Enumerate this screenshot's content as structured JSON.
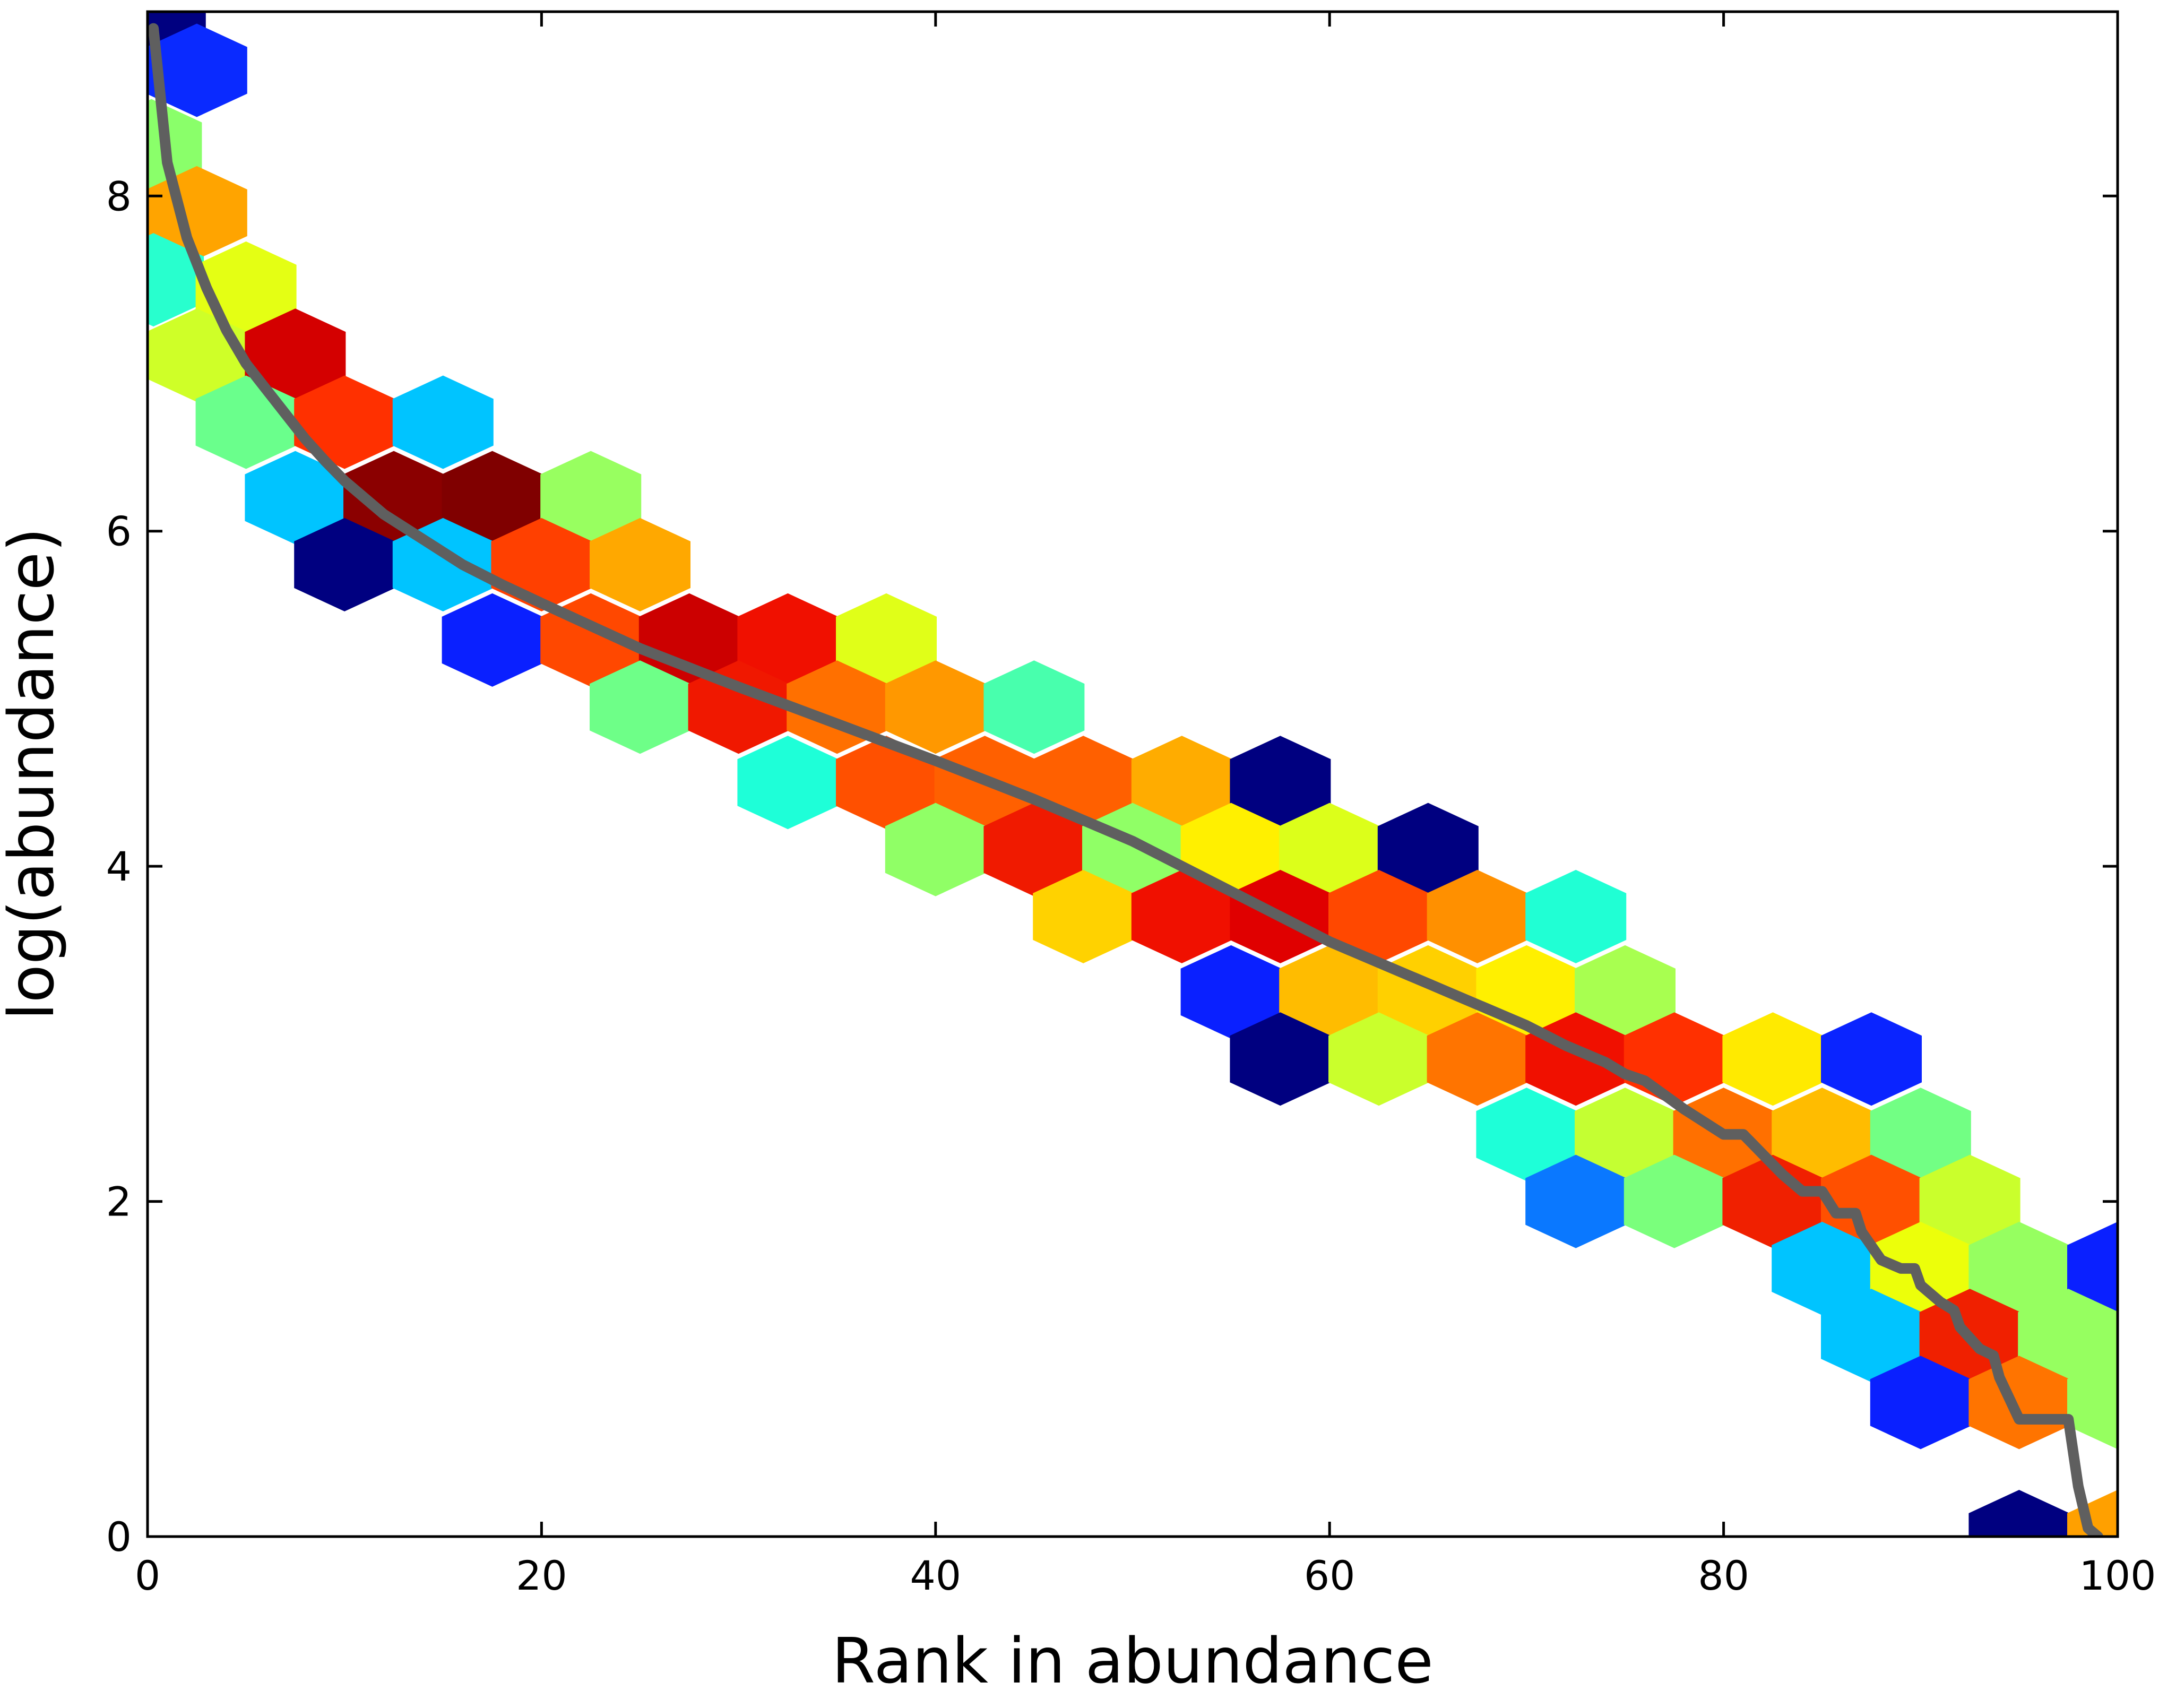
{
  "chart_data": {
    "type": "hexbin",
    "title": "",
    "xlabel": "Rank in abundance",
    "ylabel": "log(abundance)",
    "xlim": [
      0,
      100
    ],
    "ylim": [
      0,
      9.1
    ],
    "xticks": [
      "0",
      "20",
      "40",
      "60",
      "80",
      "100"
    ],
    "yticks": [
      "0",
      "2",
      "4",
      "6",
      "8"
    ],
    "grid": false,
    "legend": "none",
    "colormap": "jet",
    "hex_cells": [
      {
        "x": 0.4,
        "y": 9.05,
        "color": "#000080"
      },
      {
        "x": 2.5,
        "y": 8.75,
        "color": "#0a2aff"
      },
      {
        "x": 0.2,
        "y": 8.3,
        "color": "#8aff6a"
      },
      {
        "x": 2.5,
        "y": 7.9,
        "color": "#ffa400"
      },
      {
        "x": 0.3,
        "y": 7.5,
        "color": "#28ffce"
      },
      {
        "x": 5.0,
        "y": 7.45,
        "color": "#e4ff14"
      },
      {
        "x": 2.5,
        "y": 7.05,
        "color": "#cfff28"
      },
      {
        "x": 7.5,
        "y": 7.05,
        "color": "#d40000"
      },
      {
        "x": 5.0,
        "y": 6.65,
        "color": "#6aff8c"
      },
      {
        "x": 10.0,
        "y": 6.65,
        "color": "#ff3000"
      },
      {
        "x": 15.0,
        "y": 6.65,
        "color": "#00c4ff"
      },
      {
        "x": 7.5,
        "y": 6.2,
        "color": "#00c4ff"
      },
      {
        "x": 12.5,
        "y": 6.2,
        "color": "#8b0000"
      },
      {
        "x": 17.5,
        "y": 6.2,
        "color": "#800000"
      },
      {
        "x": 22.5,
        "y": 6.2,
        "color": "#98ff60"
      },
      {
        "x": 10.0,
        "y": 5.8,
        "color": "#000080"
      },
      {
        "x": 15.0,
        "y": 5.8,
        "color": "#00c4ff"
      },
      {
        "x": 20.0,
        "y": 5.8,
        "color": "#ff4000"
      },
      {
        "x": 25.0,
        "y": 5.8,
        "color": "#ffa800"
      },
      {
        "x": 17.5,
        "y": 5.35,
        "color": "#0a20ff"
      },
      {
        "x": 22.5,
        "y": 5.35,
        "color": "#ff4800"
      },
      {
        "x": 27.5,
        "y": 5.35,
        "color": "#cc0000"
      },
      {
        "x": 32.5,
        "y": 5.35,
        "color": "#f01000"
      },
      {
        "x": 37.5,
        "y": 5.35,
        "color": "#e0ff18"
      },
      {
        "x": 25.0,
        "y": 4.95,
        "color": "#6eff88"
      },
      {
        "x": 30.0,
        "y": 4.95,
        "color": "#f01800"
      },
      {
        "x": 35.0,
        "y": 4.95,
        "color": "#ff7000"
      },
      {
        "x": 40.0,
        "y": 4.95,
        "color": "#ff9800"
      },
      {
        "x": 45.0,
        "y": 4.95,
        "color": "#48ffad"
      },
      {
        "x": 32.5,
        "y": 4.5,
        "color": "#1effd8"
      },
      {
        "x": 37.5,
        "y": 4.5,
        "color": "#ff5000"
      },
      {
        "x": 42.5,
        "y": 4.5,
        "color": "#ff6000"
      },
      {
        "x": 47.5,
        "y": 4.5,
        "color": "#ff6000"
      },
      {
        "x": 52.5,
        "y": 4.5,
        "color": "#ffac00"
      },
      {
        "x": 57.5,
        "y": 4.5,
        "color": "#000080"
      },
      {
        "x": 40.0,
        "y": 4.1,
        "color": "#90ff66"
      },
      {
        "x": 45.0,
        "y": 4.1,
        "color": "#f01a00"
      },
      {
        "x": 50.0,
        "y": 4.1,
        "color": "#90ff66"
      },
      {
        "x": 55.0,
        "y": 4.1,
        "color": "#fff000"
      },
      {
        "x": 60.0,
        "y": 4.1,
        "color": "#dcff1a"
      },
      {
        "x": 65.0,
        "y": 4.1,
        "color": "#000080"
      },
      {
        "x": 47.5,
        "y": 3.7,
        "color": "#ffd200"
      },
      {
        "x": 52.5,
        "y": 3.7,
        "color": "#f01000"
      },
      {
        "x": 57.5,
        "y": 3.7,
        "color": "#e00000"
      },
      {
        "x": 62.5,
        "y": 3.7,
        "color": "#ff4800"
      },
      {
        "x": 67.5,
        "y": 3.7,
        "color": "#ff9000"
      },
      {
        "x": 72.5,
        "y": 3.7,
        "color": "#20ffd4"
      },
      {
        "x": 55.0,
        "y": 3.25,
        "color": "#0a20ff"
      },
      {
        "x": 60.0,
        "y": 3.25,
        "color": "#ffbc00"
      },
      {
        "x": 65.0,
        "y": 3.25,
        "color": "#ffd000"
      },
      {
        "x": 70.0,
        "y": 3.25,
        "color": "#fff000"
      },
      {
        "x": 75.0,
        "y": 3.25,
        "color": "#a8ff50"
      },
      {
        "x": 57.5,
        "y": 2.85,
        "color": "#000080"
      },
      {
        "x": 62.5,
        "y": 2.85,
        "color": "#caff2c"
      },
      {
        "x": 67.5,
        "y": 2.85,
        "color": "#ff7400"
      },
      {
        "x": 72.5,
        "y": 2.85,
        "color": "#f01000"
      },
      {
        "x": 77.5,
        "y": 2.85,
        "color": "#ff3000"
      },
      {
        "x": 82.5,
        "y": 2.85,
        "color": "#ffea00"
      },
      {
        "x": 87.5,
        "y": 2.85,
        "color": "#0a24ff"
      },
      {
        "x": 70.0,
        "y": 2.4,
        "color": "#1effd8"
      },
      {
        "x": 75.0,
        "y": 2.4,
        "color": "#c4ff32"
      },
      {
        "x": 80.0,
        "y": 2.4,
        "color": "#ff7000"
      },
      {
        "x": 85.0,
        "y": 2.4,
        "color": "#ffbc00"
      },
      {
        "x": 90.0,
        "y": 2.4,
        "color": "#72ff84"
      },
      {
        "x": 72.5,
        "y": 2.0,
        "color": "#0a78ff"
      },
      {
        "x": 77.5,
        "y": 2.0,
        "color": "#7aff7c"
      },
      {
        "x": 82.5,
        "y": 2.0,
        "color": "#f02000"
      },
      {
        "x": 87.5,
        "y": 2.0,
        "color": "#ff5000"
      },
      {
        "x": 92.5,
        "y": 2.0,
        "color": "#caff2c"
      },
      {
        "x": 85.0,
        "y": 1.6,
        "color": "#00c4ff"
      },
      {
        "x": 90.0,
        "y": 1.6,
        "color": "#ecff0a"
      },
      {
        "x": 95.0,
        "y": 1.6,
        "color": "#96ff60"
      },
      {
        "x": 100.0,
        "y": 1.6,
        "color": "#0a20ff"
      },
      {
        "x": 87.5,
        "y": 1.2,
        "color": "#00c4ff"
      },
      {
        "x": 92.5,
        "y": 1.2,
        "color": "#f02000"
      },
      {
        "x": 97.5,
        "y": 1.2,
        "color": "#96ff60"
      },
      {
        "x": 90.0,
        "y": 0.8,
        "color": "#0a20ff"
      },
      {
        "x": 95.0,
        "y": 0.8,
        "color": "#ff7400"
      },
      {
        "x": 100.0,
        "y": 0.8,
        "color": "#96ff60"
      },
      {
        "x": 95.0,
        "y": 0.0,
        "color": "#000080"
      },
      {
        "x": 100.0,
        "y": 0.0,
        "color": "#ffa000"
      }
    ],
    "series": [
      {
        "x": [
          0.3,
          1.0,
          2.0,
          3.0,
          4.0,
          5.0,
          6.0,
          7.0,
          8.0,
          9.0,
          10.0,
          12.0,
          14.0,
          16.0,
          18.0,
          20.0,
          25.0,
          30.0,
          35.0,
          40.0,
          45.0,
          50.0,
          55.0,
          60.0,
          62.0,
          64.0,
          65.0,
          66.0,
          68.0,
          70.0,
          72.0,
          74.0,
          75.0,
          76.0,
          78.0,
          80.0,
          80.5,
          81.0,
          82.0,
          83.0,
          84.0,
          84.7,
          85.0,
          85.7,
          86.0,
          86.7,
          87.0,
          88.0,
          89.0,
          89.7,
          90.0,
          91.0,
          91.7,
          92.0,
          93.0,
          93.7,
          94.0,
          95.0,
          96.0,
          97.0,
          97.5,
          98.0,
          98.5,
          99.0
        ],
        "y": [
          9.0,
          8.2,
          7.75,
          7.45,
          7.2,
          7.0,
          6.85,
          6.7,
          6.55,
          6.42,
          6.3,
          6.1,
          5.95,
          5.8,
          5.68,
          5.57,
          5.3,
          5.07,
          4.85,
          4.63,
          4.4,
          4.15,
          3.85,
          3.55,
          3.45,
          3.35,
          3.3,
          3.25,
          3.15,
          3.05,
          2.93,
          2.83,
          2.76,
          2.72,
          2.55,
          2.4,
          2.4,
          2.4,
          2.28,
          2.16,
          2.06,
          2.06,
          2.06,
          1.93,
          1.93,
          1.93,
          1.82,
          1.65,
          1.6,
          1.6,
          1.5,
          1.4,
          1.35,
          1.25,
          1.12,
          1.08,
          0.95,
          0.7,
          0.7,
          0.7,
          0.7,
          0.3,
          0.05,
          0.0
        ],
        "color": "#5f5f5f"
      }
    ]
  }
}
